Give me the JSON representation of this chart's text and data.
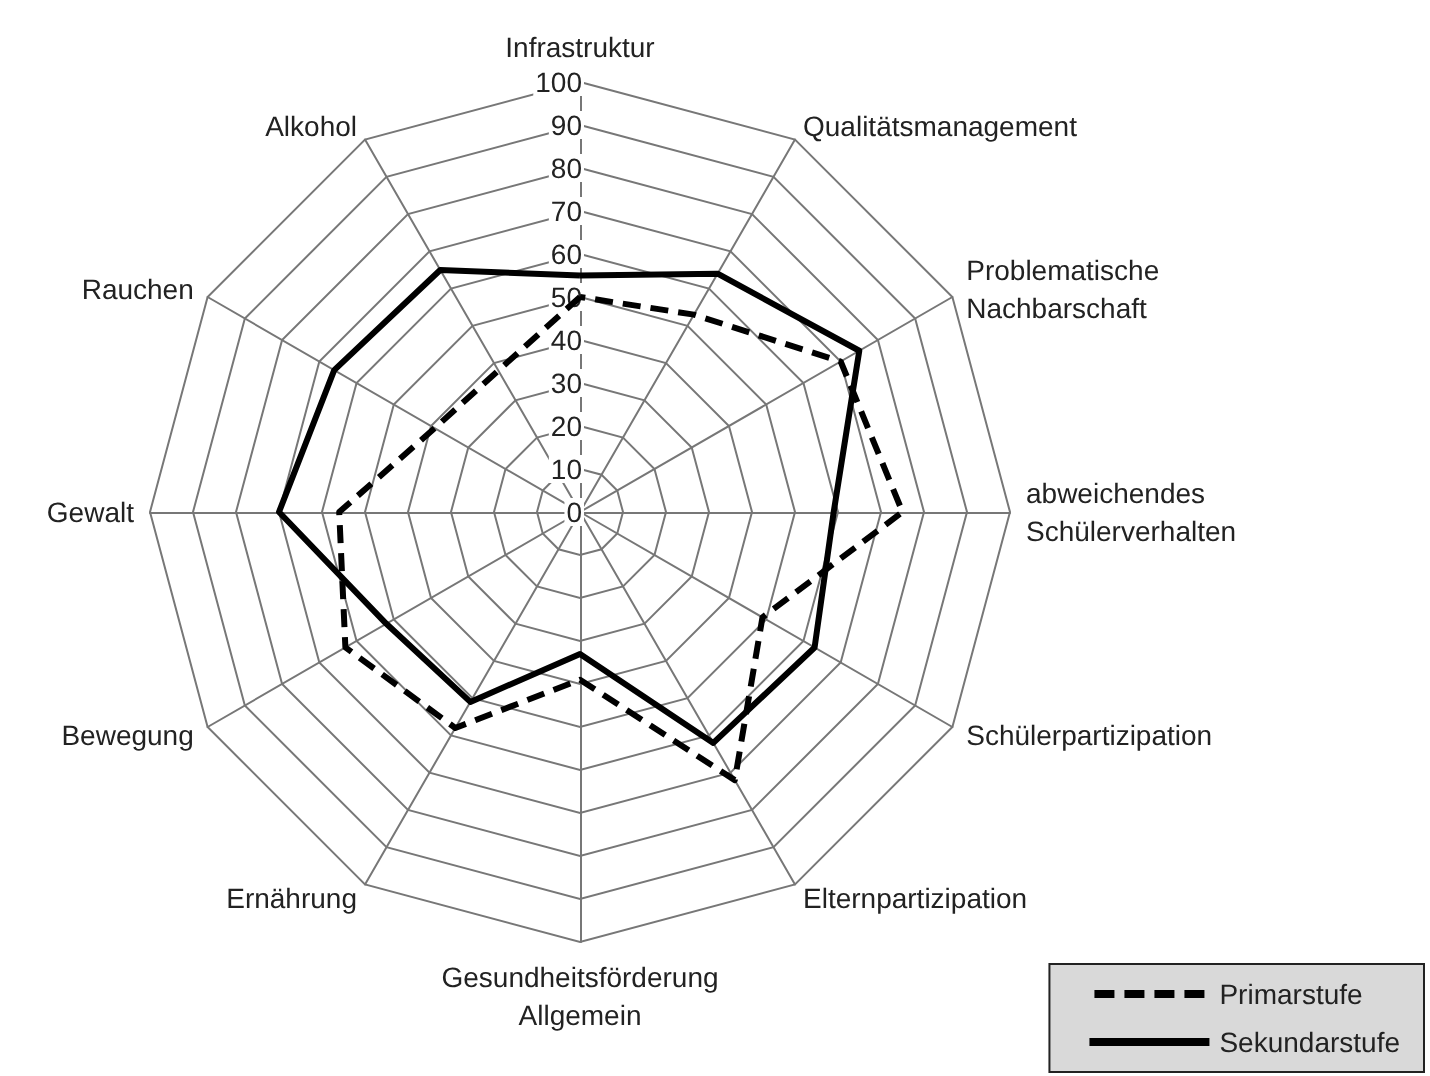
{
  "chart_data": {
    "type": "radar",
    "categories": [
      "Infrastruktur",
      "Qualitätsmanagement",
      "Problematische Nachbarschaft",
      "abweichendes Schülerverhalten",
      "Schülerpartizipation",
      "Elternpartizipation",
      "Gesundheitsförderung Allgemein",
      "Ernährung",
      "Bewegung",
      "Gewalt",
      "Rauchen",
      "Alkohol"
    ],
    "series": [
      {
        "name": "Primarstufe",
        "color": "#000000",
        "line_style": "dashed",
        "values": [
          50,
          53,
          70,
          75,
          49,
          72,
          39,
          58,
          63,
          56,
          39,
          38
        ]
      },
      {
        "name": "Sekundarstufe",
        "color": "#000000",
        "line_style": "solid",
        "values": [
          55,
          64,
          75,
          59,
          63,
          62,
          33,
          51,
          52,
          70,
          66,
          65
        ]
      }
    ],
    "ylim": [
      0,
      100
    ],
    "yticks": [
      0,
      10,
      20,
      30,
      40,
      50,
      60,
      70,
      80,
      90,
      100
    ],
    "legend": "bottom right",
    "marker": "none"
  }
}
